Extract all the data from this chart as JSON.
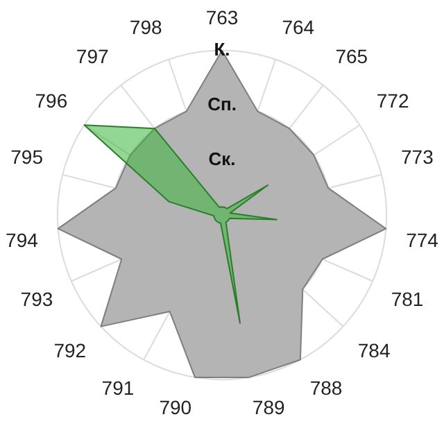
{
  "chart_data": {
    "type": "radar",
    "categories": [
      "763",
      "764",
      "765",
      "772",
      "773",
      "774",
      "781",
      "784",
      "788",
      "789",
      "790",
      "791",
      "792",
      "793",
      "794",
      "795",
      "796",
      "797",
      "798"
    ],
    "series": [
      {
        "color": "#b4b4b4",
        "values": [
          3,
          2,
          2,
          2,
          2,
          3,
          2,
          2,
          3,
          3,
          3,
          2,
          3,
          2,
          3,
          2,
          2,
          2,
          2
        ]
      },
      {
        "color": "#3cb43c",
        "values": [
          0.15,
          0.15,
          0.15,
          1,
          0.15,
          1,
          0.15,
          0.15,
          0.15,
          2,
          0.15,
          0.15,
          0.15,
          0.15,
          0.15,
          1,
          3,
          2,
          0.15
        ]
      }
    ],
    "ylim": [
      0,
      3
    ],
    "yticks": [
      {
        "value": 1,
        "label": "Ск."
      },
      {
        "value": 2,
        "label": "Сп."
      },
      {
        "value": 3,
        "label": "К."
      }
    ],
    "grid": true,
    "legend": false,
    "marker": "none"
  }
}
